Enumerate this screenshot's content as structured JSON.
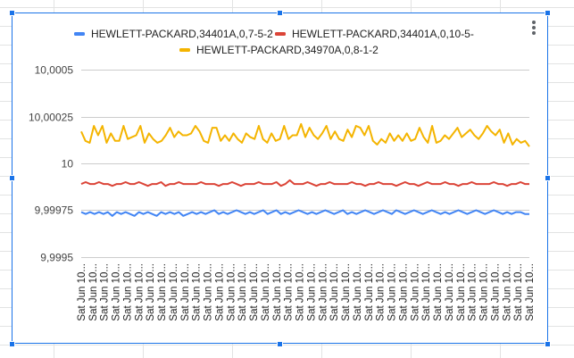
{
  "chart_data": {
    "type": "line",
    "legend_position": "top",
    "grid": true,
    "ylim": [
      9.9995,
      10.0005
    ],
    "y_ticks": [
      "10,0005",
      "10,00025",
      "10",
      "9,99975",
      "9,9995"
    ],
    "y_tick_values": [
      10.0005,
      10.00025,
      10.0,
      9.99975,
      9.9995
    ],
    "x_tick_label": "Sat Jun 10...",
    "series": [
      {
        "name": "HEWLETT-PACKARD,34401A,0,7-5-2",
        "color": "#4285f4",
        "values": [
          9.99974,
          9.99973,
          9.99974,
          9.99973,
          9.99974,
          9.99973,
          9.99974,
          9.99972,
          9.99974,
          9.99973,
          9.99974,
          9.99973,
          9.99972,
          9.99974,
          9.99973,
          9.99974,
          9.99973,
          9.99972,
          9.99974,
          9.99973,
          9.99974,
          9.99973,
          9.99974,
          9.99972,
          9.99973,
          9.99974,
          9.99973,
          9.99974,
          9.99973,
          9.99974,
          9.99975,
          9.99973,
          9.99974,
          9.99973,
          9.99974,
          9.99975,
          9.99974,
          9.99973,
          9.99974,
          9.99973,
          9.99974,
          9.99975,
          9.99973,
          9.99974,
          9.99975,
          9.99973,
          9.99974,
          9.99973,
          9.99974,
          9.99975,
          9.99974,
          9.99973,
          9.99974,
          9.99973,
          9.99974,
          9.99975,
          9.99974,
          9.99973,
          9.99974,
          9.99975,
          9.99973,
          9.99974,
          9.99973,
          9.99974,
          9.99975,
          9.99974,
          9.99973,
          9.99974,
          9.99975,
          9.99974,
          9.99973,
          9.99975,
          9.99974,
          9.99973,
          9.99974,
          9.99975,
          9.99974,
          9.99973,
          9.99974,
          9.99975,
          9.99974,
          9.99973,
          9.99974,
          9.99973,
          9.99974,
          9.99975,
          9.99974,
          9.99973,
          9.99974,
          9.99975,
          9.99974,
          9.99973,
          9.99974,
          9.99975,
          9.99974,
          9.99973,
          9.99974,
          9.99973,
          9.99974,
          9.99974,
          9.99973,
          9.99973
        ]
      },
      {
        "name": "HEWLETT-PACKARD,34401A,0,10-5-",
        "color": "#db4437",
        "values": [
          9.99989,
          9.9999,
          9.99989,
          9.99989,
          9.9999,
          9.99989,
          9.99989,
          9.99988,
          9.99989,
          9.99989,
          9.9999,
          9.99989,
          9.99989,
          9.9999,
          9.99989,
          9.99988,
          9.99989,
          9.99989,
          9.9999,
          9.99988,
          9.99989,
          9.99989,
          9.9999,
          9.99989,
          9.99989,
          9.99989,
          9.99989,
          9.9999,
          9.99989,
          9.99989,
          9.99989,
          9.99988,
          9.99989,
          9.99989,
          9.9999,
          9.99989,
          9.99988,
          9.99989,
          9.99989,
          9.99989,
          9.9999,
          9.99989,
          9.99989,
          9.99989,
          9.9999,
          9.99988,
          9.99989,
          9.99991,
          9.99989,
          9.99989,
          9.99989,
          9.9999,
          9.99989,
          9.99988,
          9.99989,
          9.99989,
          9.9999,
          9.99989,
          9.99989,
          9.99989,
          9.99989,
          9.9999,
          9.99989,
          9.99989,
          9.99988,
          9.99989,
          9.99989,
          9.9999,
          9.99989,
          9.99989,
          9.99989,
          9.99988,
          9.99989,
          9.9999,
          9.99989,
          9.99989,
          9.99988,
          9.99989,
          9.9999,
          9.99989,
          9.99989,
          9.99989,
          9.9999,
          9.99989,
          9.99989,
          9.99988,
          9.99989,
          9.99989,
          9.9999,
          9.99989,
          9.99989,
          9.99989,
          9.99989,
          9.9999,
          9.99989,
          9.99989,
          9.99988,
          9.99989,
          9.99989,
          9.9999,
          9.99989,
          9.99989
        ]
      },
      {
        "name": "HEWLETT-PACKARD,34970A,0,8-1-2",
        "color": "#f4b400",
        "values": [
          10.00017,
          10.00012,
          10.00011,
          10.0002,
          10.00015,
          10.0002,
          10.00011,
          10.00016,
          10.00012,
          10.00012,
          10.0002,
          10.00013,
          10.00014,
          10.00015,
          10.0002,
          10.00011,
          10.00016,
          10.00013,
          10.00011,
          10.00012,
          10.00015,
          10.00019,
          10.00014,
          10.00017,
          10.00015,
          10.00015,
          10.00016,
          10.0002,
          10.00017,
          10.00012,
          10.00011,
          10.00019,
          10.00019,
          10.00012,
          10.00015,
          10.00012,
          10.00016,
          10.00013,
          10.00011,
          10.00016,
          10.00014,
          10.00013,
          10.0002,
          10.00013,
          10.00011,
          10.00016,
          10.00012,
          10.00013,
          10.0002,
          10.00013,
          10.00015,
          10.00015,
          10.00021,
          10.00014,
          10.00019,
          10.00015,
          10.00013,
          10.00016,
          10.0002,
          10.00013,
          10.00017,
          10.00013,
          10.00012,
          10.00018,
          10.00014,
          10.0002,
          10.00019,
          10.00015,
          10.0002,
          10.00012,
          10.0001,
          10.00013,
          10.00011,
          10.00016,
          10.00012,
          10.00015,
          10.00012,
          10.00016,
          10.00012,
          10.00013,
          10.00019,
          10.00014,
          10.00011,
          10.0002,
          10.00011,
          10.00012,
          10.00015,
          10.00013,
          10.00016,
          10.00019,
          10.00014,
          10.00016,
          10.00018,
          10.00015,
          10.00013,
          10.00016,
          10.0002,
          10.00017,
          10.00015,
          10.00018,
          10.00011,
          10.00016,
          10.0001,
          10.00013,
          10.00011,
          10.00012,
          10.00009
        ]
      }
    ]
  },
  "ui": {
    "menu_icon": "vertical-dots-icon",
    "selection_color": "#1a73e8"
  }
}
